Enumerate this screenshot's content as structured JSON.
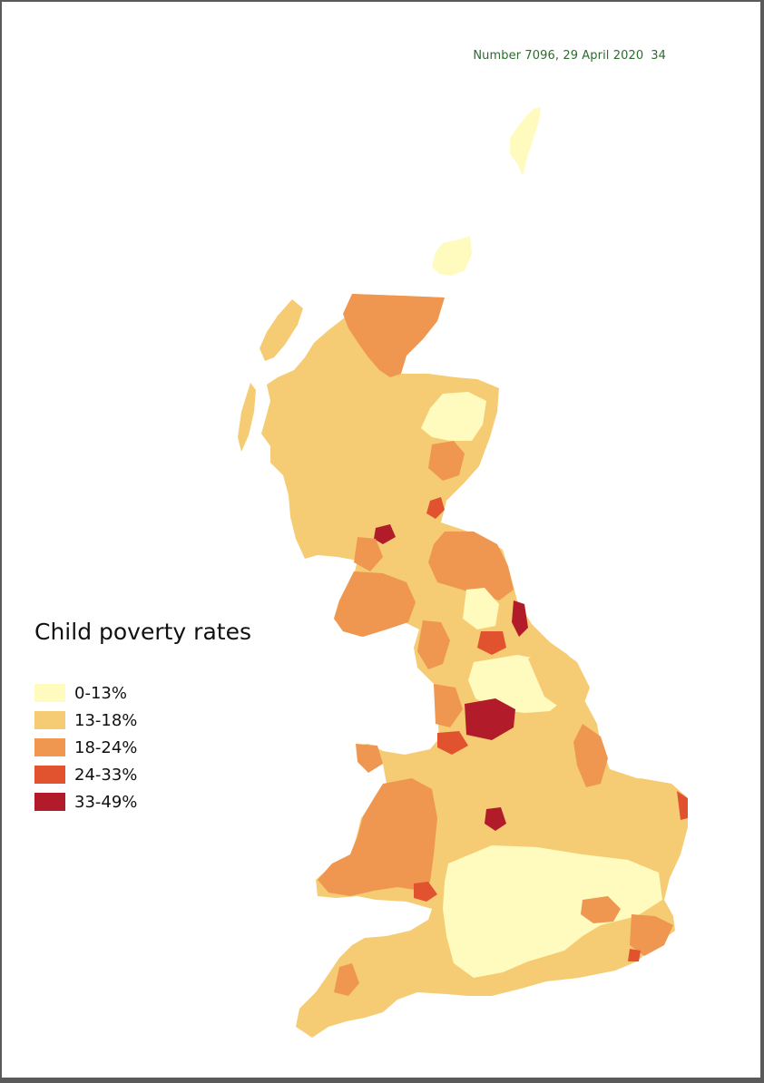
{
  "header": {
    "citation": "Number 7096, 29 April 2020",
    "page_number": "34"
  },
  "legend": {
    "title": "Child poverty rates",
    "items": [
      {
        "label": "0-13%",
        "color": "#fffbbf"
      },
      {
        "label": "13-18%",
        "color": "#f5cc73"
      },
      {
        "label": "18-24%",
        "color": "#ef9650"
      },
      {
        "label": "24-33%",
        "color": "#e1532f"
      },
      {
        "label": "33-49%",
        "color": "#b21c2a"
      }
    ]
  }
}
